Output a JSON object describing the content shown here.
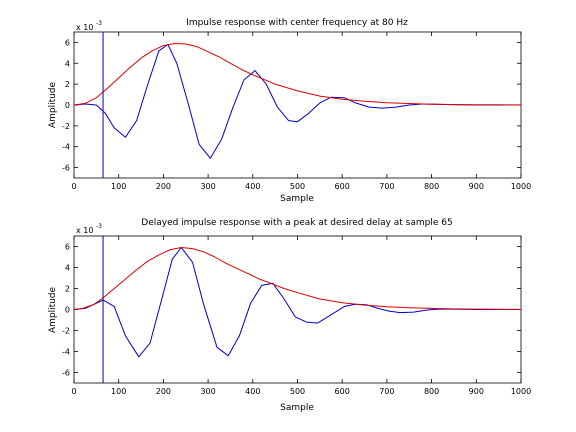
{
  "chart_data": [
    {
      "type": "line",
      "title": "Impulse response with center frequency at 80 Hz",
      "xlabel": "Sample",
      "ylabel": "Amplitude",
      "y_exponent_base": "x 10",
      "y_exponent_power": "-3",
      "xlim": [
        0,
        1000
      ],
      "ylim": [
        -7,
        7
      ],
      "xticks": [
        "0",
        "100",
        "200",
        "300",
        "400",
        "500",
        "600",
        "700",
        "800",
        "900",
        "1000"
      ],
      "yticks": [
        "-6",
        "-4",
        "-2",
        "0",
        "2",
        "4",
        "6"
      ],
      "grid": false,
      "marker_line_x": 65,
      "series": [
        {
          "color": "#0000cc",
          "x": [
            0,
            25,
            50,
            70,
            90,
            115,
            140,
            165,
            190,
            210,
            230,
            255,
            280,
            305,
            330,
            355,
            380,
            405,
            430,
            455,
            480,
            500,
            525,
            550,
            575,
            605,
            630,
            660,
            690,
            720,
            750,
            780,
            810,
            850,
            900,
            950,
            1000
          ],
          "y": [
            0.0,
            0.1,
            0.0,
            -0.8,
            -2.2,
            -3.1,
            -1.5,
            2.0,
            5.2,
            5.8,
            4.0,
            0.2,
            -3.8,
            -5.1,
            -3.3,
            -0.3,
            2.4,
            3.3,
            2.0,
            -0.2,
            -1.5,
            -1.6,
            -0.8,
            0.2,
            0.75,
            0.7,
            0.2,
            -0.2,
            -0.3,
            -0.2,
            0.0,
            0.1,
            0.08,
            0.02,
            0.0,
            0.0,
            0.0
          ]
        },
        {
          "color": "#dd0000",
          "x": [
            0,
            25,
            50,
            75,
            100,
            125,
            150,
            175,
            200,
            225,
            250,
            275,
            300,
            325,
            350,
            375,
            400,
            450,
            500,
            550,
            600,
            650,
            700,
            750,
            800,
            850,
            900,
            950,
            1000
          ],
          "y": [
            0.0,
            0.15,
            0.7,
            1.6,
            2.6,
            3.6,
            4.5,
            5.2,
            5.7,
            5.9,
            5.85,
            5.6,
            5.1,
            4.6,
            4.0,
            3.4,
            2.9,
            2.0,
            1.35,
            0.85,
            0.55,
            0.35,
            0.22,
            0.14,
            0.08,
            0.05,
            0.03,
            0.02,
            0.01
          ]
        }
      ]
    },
    {
      "type": "line",
      "title": "Delayed impulse response with a peak at desired delay at sample 65",
      "xlabel": "Sample",
      "ylabel": "Amplitude",
      "y_exponent_base": "x 10",
      "y_exponent_power": "-3",
      "xlim": [
        0,
        1000
      ],
      "ylim": [
        -7,
        7
      ],
      "xticks": [
        "0",
        "100",
        "200",
        "300",
        "400",
        "500",
        "600",
        "700",
        "800",
        "900",
        "1000"
      ],
      "yticks": [
        "-6",
        "-4",
        "-2",
        "0",
        "2",
        "4",
        "6"
      ],
      "grid": false,
      "marker_line_x": 65,
      "series": [
        {
          "color": "#0000cc",
          "x": [
            0,
            25,
            45,
            65,
            90,
            115,
            145,
            170,
            195,
            220,
            240,
            265,
            290,
            320,
            345,
            370,
            395,
            420,
            445,
            470,
            495,
            520,
            545,
            575,
            605,
            630,
            655,
            680,
            705,
            730,
            760,
            790,
            820,
            860,
            900,
            950,
            1000
          ],
          "y": [
            0.0,
            0.1,
            0.5,
            0.9,
            0.3,
            -2.5,
            -4.5,
            -3.2,
            0.8,
            4.8,
            5.9,
            4.5,
            0.5,
            -3.6,
            -4.4,
            -2.5,
            0.6,
            2.3,
            2.5,
            1.0,
            -0.7,
            -1.2,
            -1.3,
            -0.5,
            0.3,
            0.5,
            0.45,
            0.1,
            -0.15,
            -0.3,
            -0.25,
            -0.05,
            0.05,
            0.03,
            0.0,
            0.0,
            0.0
          ]
        },
        {
          "color": "#dd0000",
          "x": [
            0,
            20,
            45,
            65,
            90,
            115,
            140,
            165,
            190,
            215,
            240,
            265,
            290,
            315,
            340,
            365,
            390,
            415,
            440,
            470,
            500,
            550,
            600,
            650,
            700,
            750,
            800,
            850,
            900,
            950,
            1000
          ],
          "y": [
            0.0,
            0.1,
            0.5,
            1.1,
            2.0,
            2.9,
            3.8,
            4.6,
            5.2,
            5.7,
            5.9,
            5.8,
            5.5,
            5.0,
            4.4,
            3.9,
            3.4,
            2.9,
            2.5,
            2.0,
            1.6,
            1.0,
            0.65,
            0.42,
            0.27,
            0.17,
            0.1,
            0.06,
            0.04,
            0.02,
            0.01
          ]
        }
      ]
    }
  ]
}
